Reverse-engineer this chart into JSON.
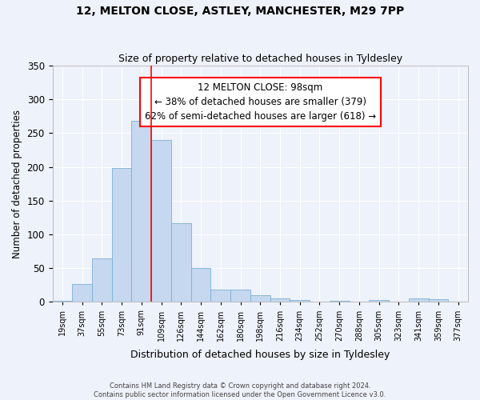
{
  "title1": "12, MELTON CLOSE, ASTLEY, MANCHESTER, M29 7PP",
  "title2": "Size of property relative to detached houses in Tyldesley",
  "xlabel": "Distribution of detached houses by size in Tyldesley",
  "ylabel": "Number of detached properties",
  "bin_labels": [
    "19sqm",
    "37sqm",
    "55sqm",
    "73sqm",
    "91sqm",
    "109sqm",
    "126sqm",
    "144sqm",
    "162sqm",
    "180sqm",
    "198sqm",
    "216sqm",
    "234sqm",
    "252sqm",
    "270sqm",
    "288sqm",
    "305sqm",
    "323sqm",
    "341sqm",
    "359sqm",
    "377sqm"
  ],
  "bar_heights": [
    2,
    27,
    65,
    198,
    268,
    240,
    116,
    50,
    18,
    18,
    10,
    5,
    3,
    1,
    2,
    0,
    3,
    0,
    5,
    4,
    1
  ],
  "bar_color": "#c5d8f0",
  "bar_edge_color": "#7bafd4",
  "property_line_x": 5,
  "bin_edges_idx": [
    0,
    1,
    2,
    3,
    4,
    5,
    6,
    7,
    8,
    9,
    10,
    11,
    12,
    13,
    14,
    15,
    16,
    17,
    18,
    19,
    20,
    21
  ],
  "annotation_line": "12 MELTON CLOSE: 98sqm",
  "annotation_line2": "← 38% of detached houses are smaller (379)",
  "annotation_line3": "62% of semi-detached houses are larger (618) →",
  "ylim": [
    0,
    350
  ],
  "yticks": [
    0,
    50,
    100,
    150,
    200,
    250,
    300,
    350
  ],
  "background_color": "#eef2fa",
  "grid_color": "#ffffff",
  "footer_text": "Contains HM Land Registry data © Crown copyright and database right 2024.\nContains public sector information licensed under the Open Government Licence v3.0."
}
